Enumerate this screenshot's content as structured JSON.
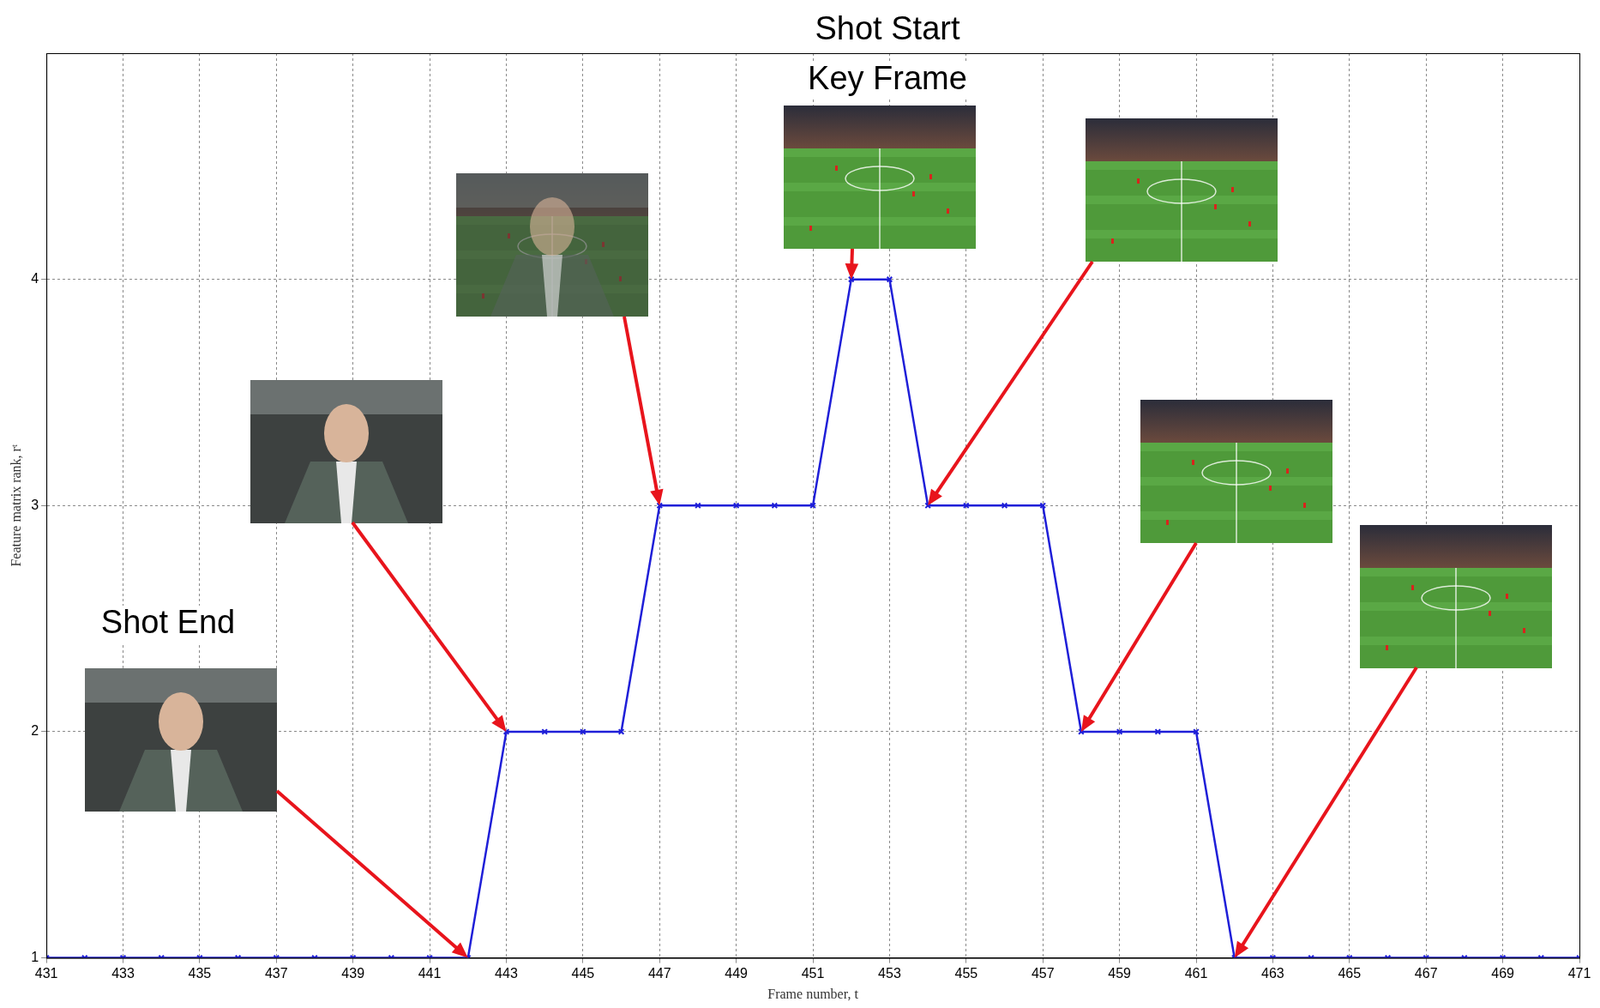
{
  "chart_data": {
    "type": "line",
    "x_label": "Frame number, t",
    "y_label": "Feature matrix rank, rᵗ",
    "x": [
      431,
      432,
      433,
      434,
      435,
      436,
      437,
      438,
      439,
      440,
      441,
      442,
      443,
      444,
      445,
      446,
      447,
      448,
      449,
      450,
      451,
      452,
      453,
      454,
      455,
      456,
      457,
      458,
      459,
      460,
      461,
      462,
      463,
      464,
      465,
      466,
      467,
      468,
      469,
      470,
      471
    ],
    "values": [
      1,
      1,
      1,
      1,
      1,
      1,
      1,
      1,
      1,
      1,
      1,
      1,
      2,
      2,
      2,
      2,
      3,
      3,
      3,
      3,
      3,
      4,
      4,
      3,
      3,
      3,
      3,
      2,
      2,
      2,
      2,
      1,
      1,
      1,
      1,
      1,
      1,
      1,
      1,
      1,
      1
    ],
    "color": "#1f1fd8",
    "marker": "x",
    "line_style": "solid",
    "xlim": [
      431,
      471
    ],
    "xticks": [
      431,
      433,
      435,
      437,
      439,
      441,
      443,
      445,
      447,
      449,
      451,
      453,
      455,
      457,
      459,
      461,
      463,
      465,
      467,
      469,
      471
    ],
    "ylim": [
      1,
      5
    ],
    "yticks": [
      1,
      2,
      3,
      4
    ],
    "grid": true,
    "annotations": [
      {
        "x": 442,
        "y": 1,
        "text": "Shot End"
      },
      {
        "x": 443,
        "y": 2
      },
      {
        "x": 447,
        "y": 3
      },
      {
        "x": 452,
        "y": 4,
        "text": "Shot Start\nKey Frame"
      },
      {
        "x": 454,
        "y": 3
      },
      {
        "x": 458,
        "y": 2
      },
      {
        "x": 462,
        "y": 1
      }
    ]
  }
}
